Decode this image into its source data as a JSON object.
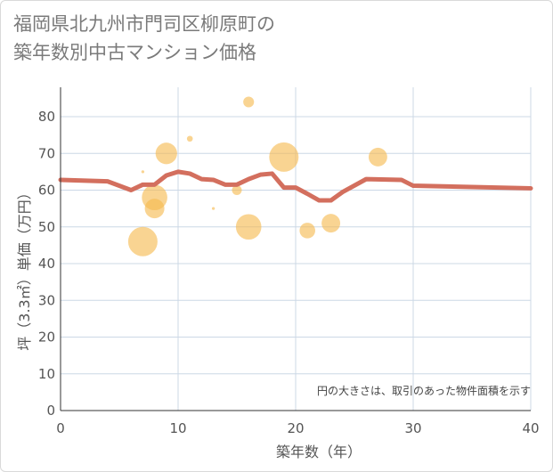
{
  "title_line1": "福岡県北九州市門司区柳原町の",
  "title_line2": "築年数別中古マンション価格",
  "chart_data": {
    "type": "scatter",
    "title": "福岡県北九州市門司区柳原町の築年数別中古マンション価格",
    "xlabel": "築年数（年）",
    "ylabel": "坪（3.3㎡）単価（万円）",
    "xlim": [
      0,
      40
    ],
    "ylim": [
      0,
      88
    ],
    "xticks": [
      0,
      10,
      20,
      30,
      40
    ],
    "yticks": [
      0,
      10,
      20,
      30,
      40,
      50,
      60,
      70,
      80
    ],
    "grid": true,
    "note": "円の大きさは、取引のあった物件面積を示す",
    "colors": {
      "bubble": "#f5b94f",
      "line": "#d36f5e",
      "grid": "#ccd8e6"
    },
    "bubbles": [
      {
        "x": 7,
        "y": 46,
        "size": 3.0
      },
      {
        "x": 7,
        "y": 65,
        "size": 0.3
      },
      {
        "x": 8,
        "y": 58,
        "size": 2.6
      },
      {
        "x": 8,
        "y": 55,
        "size": 2.0
      },
      {
        "x": 9,
        "y": 70,
        "size": 2.2
      },
      {
        "x": 11,
        "y": 74,
        "size": 0.6
      },
      {
        "x": 13,
        "y": 55,
        "size": 0.3
      },
      {
        "x": 15,
        "y": 60,
        "size": 1.0
      },
      {
        "x": 16,
        "y": 84,
        "size": 1.1
      },
      {
        "x": 16,
        "y": 50,
        "size": 2.6
      },
      {
        "x": 19,
        "y": 69,
        "size": 3.0
      },
      {
        "x": 21,
        "y": 49,
        "size": 1.6
      },
      {
        "x": 23,
        "y": 51,
        "size": 1.9
      },
      {
        "x": 27,
        "y": 69,
        "size": 1.9
      }
    ],
    "trend": {
      "x": [
        0,
        4,
        6,
        7,
        8,
        9,
        10,
        11,
        12,
        13,
        14,
        15,
        16,
        17,
        18,
        19,
        20,
        21,
        22,
        23,
        24,
        26,
        29,
        30,
        40
      ],
      "y": [
        62.8,
        62.4,
        60,
        61.5,
        61.5,
        64,
        65,
        64.5,
        63,
        62.8,
        61.5,
        61.5,
        63,
        64.2,
        64.5,
        60.7,
        60.7,
        59,
        57.2,
        57.2,
        59.5,
        63,
        62.8,
        61.2,
        60.5
      ]
    }
  }
}
